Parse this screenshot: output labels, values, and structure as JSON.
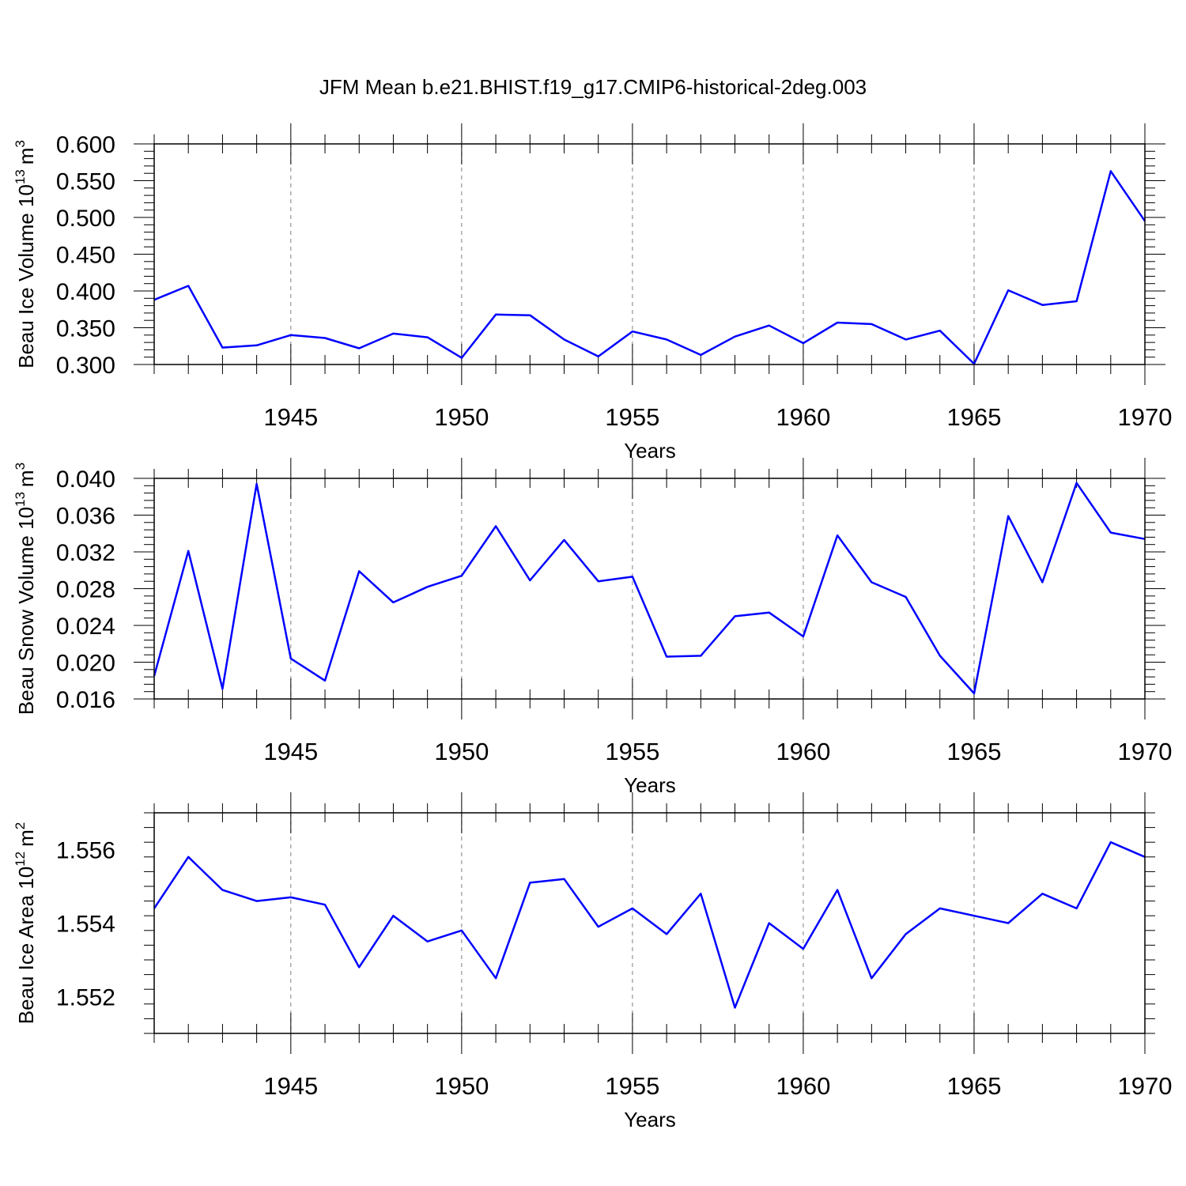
{
  "title": "JFM Mean b.e21.BHIST.f19_g17.CMIP6-historical-2deg.003",
  "line_color": "#0000ff",
  "chart_data": [
    {
      "type": "line",
      "ylabel": "Beau Ice Volume 10",
      "ylabel_exp": "13",
      "ylabel_unit": "m",
      "ylabel_unit_exp": "3",
      "xlabel": "Years",
      "xlim": [
        1941,
        1970
      ],
      "ylim": [
        0.3,
        0.6
      ],
      "grid": "vertical-dashed",
      "xticks": [
        "1945",
        "1950",
        "1955",
        "1960",
        "1965",
        "1970"
      ],
      "yticks": [
        "0.300",
        "0.350",
        "0.400",
        "0.450",
        "0.500",
        "0.550",
        "0.600"
      ],
      "x": [
        1941,
        1942,
        1943,
        1944,
        1945,
        1946,
        1947,
        1948,
        1949,
        1950,
        1951,
        1952,
        1953,
        1954,
        1955,
        1956,
        1957,
        1958,
        1959,
        1960,
        1961,
        1962,
        1963,
        1964,
        1965,
        1966,
        1967,
        1968,
        1969,
        1970
      ],
      "values": [
        0.388,
        0.407,
        0.323,
        0.326,
        0.34,
        0.336,
        0.322,
        0.342,
        0.337,
        0.309,
        0.368,
        0.367,
        0.334,
        0.311,
        0.345,
        0.334,
        0.313,
        0.338,
        0.353,
        0.329,
        0.357,
        0.355,
        0.334,
        0.346,
        0.301,
        0.401,
        0.381,
        0.386,
        0.563,
        0.495
      ]
    },
    {
      "type": "line",
      "ylabel": "Beau Snow Volume 10",
      "ylabel_exp": "13",
      "ylabel_unit": "m",
      "ylabel_unit_exp": "3",
      "xlabel": "Years",
      "xlim": [
        1941,
        1970
      ],
      "ylim": [
        0.016,
        0.04
      ],
      "grid": "vertical-dashed",
      "xticks": [
        "1945",
        "1950",
        "1955",
        "1960",
        "1965",
        "1970"
      ],
      "yticks": [
        "0.016",
        "0.020",
        "0.024",
        "0.028",
        "0.032",
        "0.036",
        "0.040"
      ],
      "x": [
        1941,
        1942,
        1943,
        1944,
        1945,
        1946,
        1947,
        1948,
        1949,
        1950,
        1951,
        1952,
        1953,
        1954,
        1955,
        1956,
        1957,
        1958,
        1959,
        1960,
        1961,
        1962,
        1963,
        1964,
        1965,
        1966,
        1967,
        1968,
        1969,
        1970
      ],
      "values": [
        0.0185,
        0.0321,
        0.0171,
        0.0394,
        0.0204,
        0.018,
        0.0299,
        0.0265,
        0.0282,
        0.0294,
        0.0348,
        0.0289,
        0.0333,
        0.0288,
        0.0293,
        0.0206,
        0.0207,
        0.025,
        0.0254,
        0.0228,
        0.0338,
        0.0287,
        0.0271,
        0.0207,
        0.0166,
        0.0359,
        0.0287,
        0.0395,
        0.0341,
        0.0334
      ]
    },
    {
      "type": "line",
      "ylabel": "Beau Ice Area 10",
      "ylabel_exp": "12",
      "ylabel_unit": "m",
      "ylabel_unit_exp": "2",
      "xlabel": "Years",
      "xlim": [
        1941,
        1970
      ],
      "ylim": [
        1.551,
        1.557
      ],
      "grid": "vertical-dashed",
      "xticks": [
        "1945",
        "1950",
        "1955",
        "1960",
        "1965",
        "1970"
      ],
      "yticks": [
        "1.552",
        "1.554",
        "1.556"
      ],
      "x": [
        1941,
        1942,
        1943,
        1944,
        1945,
        1946,
        1947,
        1948,
        1949,
        1950,
        1951,
        1952,
        1953,
        1954,
        1955,
        1956,
        1957,
        1958,
        1959,
        1960,
        1961,
        1962,
        1963,
        1964,
        1965,
        1966,
        1967,
        1968,
        1969,
        1970
      ],
      "values": [
        1.5544,
        1.5558,
        1.5549,
        1.5546,
        1.5547,
        1.5545,
        1.5528,
        1.5542,
        1.5535,
        1.5538,
        1.5525,
        1.5551,
        1.5552,
        1.5539,
        1.5544,
        1.5537,
        1.5548,
        1.5517,
        1.554,
        1.5533,
        1.5549,
        1.5525,
        1.5537,
        1.5544,
        1.5542,
        1.554,
        1.5548,
        1.5544,
        1.5562,
        1.5558
      ]
    }
  ]
}
